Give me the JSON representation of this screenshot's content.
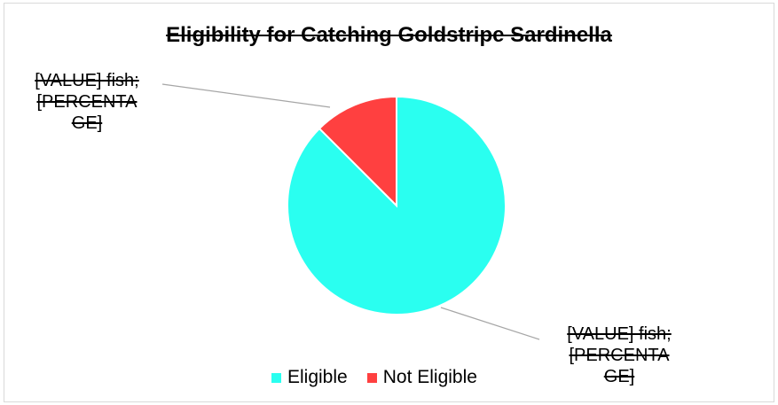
{
  "chart_data": {
    "type": "pie",
    "title": "Eligibility for Catching Goldstripe Sardinella",
    "slices": [
      {
        "name": "Eligible",
        "value": 87.5,
        "color": "#2afff0"
      },
      {
        "name": "Not Eligible",
        "value": 12.5,
        "color": "#ff4040"
      }
    ],
    "legend_position": "bottom",
    "data_labels": {
      "not_eligible": [
        "[VALUE] fish;",
        "[PERCENTA",
        "GE]"
      ],
      "eligible": [
        "[VALUE] fish;",
        "[PERCENTA",
        "GE]"
      ]
    }
  }
}
